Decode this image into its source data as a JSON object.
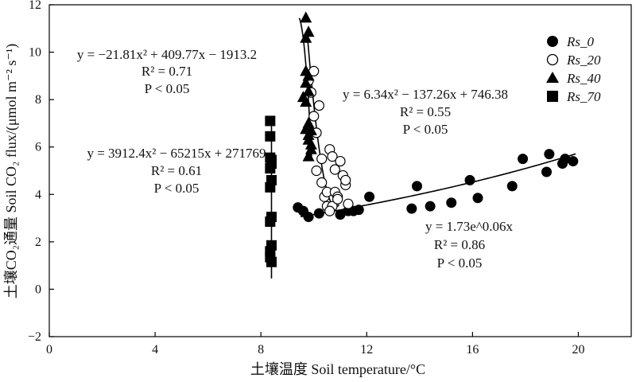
{
  "chart_data": {
    "type": "scatter",
    "xlabel": "土壤温度 Soil temperature/°C",
    "ylabel": "土壤CO₂通量 Soil CO₂ flux/(μmol m⁻² s⁻¹)",
    "xlim": [
      0,
      22
    ],
    "ylim": [
      -2,
      12
    ],
    "xticks": [
      0,
      4,
      8,
      12,
      16,
      20
    ],
    "yticks": [
      -2,
      0,
      2,
      4,
      6,
      8,
      10,
      12
    ],
    "grid": false,
    "legend_position": "top-right",
    "series": [
      {
        "name": "Rs_0",
        "marker": "filled-circle",
        "color": "#000000",
        "points": [
          [
            9.4,
            3.45
          ],
          [
            9.6,
            3.3
          ],
          [
            9.8,
            3.05
          ],
          [
            10.2,
            3.2
          ],
          [
            10.6,
            3.35
          ],
          [
            11.0,
            3.15
          ],
          [
            11.3,
            3.3
          ],
          [
            11.5,
            3.3
          ],
          [
            11.7,
            3.35
          ],
          [
            12.1,
            3.9
          ],
          [
            13.7,
            3.4
          ],
          [
            13.9,
            4.35
          ],
          [
            14.4,
            3.5
          ],
          [
            15.2,
            3.65
          ],
          [
            15.9,
            4.6
          ],
          [
            16.2,
            3.85
          ],
          [
            17.5,
            4.35
          ],
          [
            17.9,
            5.5
          ],
          [
            18.8,
            4.95
          ],
          [
            18.9,
            5.7
          ],
          [
            19.4,
            5.3
          ],
          [
            19.5,
            5.5
          ],
          [
            19.8,
            5.4
          ]
        ],
        "fit": {
          "kind": "exp",
          "a": 1.73,
          "b": 0.06,
          "x_range": [
            9.5,
            19.9
          ]
        }
      },
      {
        "name": "Rs_20",
        "marker": "open-circle",
        "color": "#000000",
        "points": [
          [
            9.8,
            8.8
          ],
          [
            9.9,
            8.3
          ],
          [
            10.0,
            9.2
          ],
          [
            10.0,
            7.3
          ],
          [
            10.1,
            6.6
          ],
          [
            10.2,
            7.75
          ],
          [
            10.1,
            5.0
          ],
          [
            10.3,
            5.5
          ],
          [
            10.3,
            4.5
          ],
          [
            10.4,
            3.9
          ],
          [
            10.5,
            3.5
          ],
          [
            10.5,
            4.1
          ],
          [
            10.6,
            5.9
          ],
          [
            10.7,
            3.5
          ],
          [
            10.7,
            5.6
          ],
          [
            10.8,
            5.05
          ],
          [
            10.8,
            4.1
          ],
          [
            10.9,
            3.9
          ],
          [
            11.0,
            5.4
          ],
          [
            11.1,
            4.8
          ],
          [
            11.2,
            4.4
          ],
          [
            11.3,
            3.6
          ],
          [
            11.2,
            4.6
          ],
          [
            10.9,
            3.8
          ],
          [
            10.6,
            3.3
          ]
        ],
        "fit": {
          "kind": "poly2",
          "a": 6.34,
          "b": -137.26,
          "c": 746.38,
          "x_range": [
            9.75,
            10.95
          ]
        }
      },
      {
        "name": "Rs_40",
        "marker": "filled-triangle",
        "color": "#000000",
        "points": [
          [
            9.7,
            11.45
          ],
          [
            9.7,
            10.6
          ],
          [
            9.8,
            10.85
          ],
          [
            9.7,
            9.2
          ],
          [
            9.8,
            9.0
          ],
          [
            9.7,
            8.7
          ],
          [
            9.8,
            8.35
          ],
          [
            9.6,
            8.1
          ],
          [
            9.7,
            7.9
          ],
          [
            9.8,
            7.0
          ],
          [
            9.7,
            6.75
          ],
          [
            9.8,
            6.5
          ],
          [
            9.8,
            6.3
          ],
          [
            9.9,
            6.1
          ],
          [
            9.9,
            5.9
          ],
          [
            9.8,
            5.6
          ],
          [
            9.9,
            6.7
          ]
        ],
        "fit": {
          "kind": "poly2",
          "a": -21.81,
          "b": 409.77,
          "c": -1913.2,
          "x_range": [
            9.45,
            9.92
          ]
        }
      },
      {
        "name": "Rs_70",
        "marker": "filled-square",
        "color": "#000000",
        "points": [
          [
            8.35,
            7.1
          ],
          [
            8.35,
            6.45
          ],
          [
            8.35,
            5.55
          ],
          [
            8.4,
            5.45
          ],
          [
            8.4,
            5.3
          ],
          [
            8.35,
            5.1
          ],
          [
            8.4,
            4.6
          ],
          [
            8.35,
            4.3
          ],
          [
            8.4,
            3.05
          ],
          [
            8.35,
            2.85
          ],
          [
            8.4,
            1.85
          ],
          [
            8.35,
            1.6
          ],
          [
            8.35,
            1.35
          ],
          [
            8.4,
            1.15
          ]
        ],
        "fit": {
          "kind": "vertical",
          "x": 8.4,
          "y_range": [
            0.45,
            7.0
          ]
        }
      }
    ],
    "annotations": [
      {
        "id": "eq40",
        "lines": [
          "y = −21.81x² + 409.77x − 1913.2",
          "R² = 0.71",
          "P < 0.05"
        ]
      },
      {
        "id": "eq20",
        "lines": [
          "y = 6.34x² − 137.26x + 746.38",
          "R² = 0.55",
          "P < 0.05"
        ]
      },
      {
        "id": "eq70",
        "lines": [
          "y = 3912.4x² − 65215x + 271769",
          "R² = 0.61",
          "P < 0.05"
        ]
      },
      {
        "id": "eq0",
        "lines": [
          "y = 1.73e^0.06x",
          "R² = 0.86",
          "P < 0.05"
        ]
      }
    ]
  }
}
